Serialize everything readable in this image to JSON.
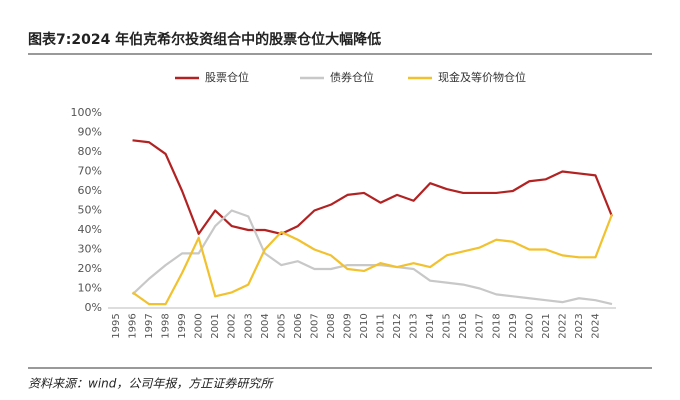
{
  "chart_data": {
    "type": "line",
    "title": "图表7:2024 年伯克希尔投资组合中的股票仓位大幅降低",
    "source": "资料来源：wind，公司年报，方正证券研究所",
    "categories": [
      "1995",
      "1996",
      "1997",
      "1998",
      "1999",
      "2000",
      "2001",
      "2002",
      "2003",
      "2004",
      "2005",
      "2006",
      "2007",
      "2008",
      "2009",
      "2010",
      "2011",
      "2012",
      "2013",
      "2014",
      "2015",
      "2016",
      "2017",
      "2018",
      "2019",
      "2020",
      "2021",
      "2022",
      "2023",
      "2024",
      null
    ],
    "series": [
      {
        "name": "股票仓位",
        "color": "#b22222",
        "values": [
          null,
          86,
          85,
          79,
          60,
          38,
          50,
          42,
          40,
          40,
          38,
          42,
          50,
          53,
          58,
          59,
          54,
          58,
          55,
          64,
          61,
          59,
          59,
          59,
          60,
          65,
          66,
          70,
          69,
          68,
          47
        ]
      },
      {
        "name": "债券仓位",
        "color": "#c8c8c8",
        "values": [
          null,
          7,
          15,
          22,
          28,
          28,
          42,
          50,
          47,
          28,
          22,
          24,
          20,
          20,
          22,
          22,
          22,
          21,
          20,
          14,
          13,
          12,
          10,
          7,
          6,
          5,
          4,
          3,
          5,
          4,
          2
        ]
      },
      {
        "name": "现金及等价物仓位",
        "color": "#f2c12e",
        "values": [
          null,
          8,
          2,
          2,
          18,
          36,
          6,
          8,
          12,
          30,
          39,
          35,
          30,
          27,
          20,
          19,
          23,
          21,
          23,
          21,
          27,
          29,
          31,
          35,
          34,
          30,
          30,
          27,
          26,
          26,
          48
        ]
      }
    ],
    "ylim": [
      0,
      100
    ],
    "yticks": [
      {
        "value": 0,
        "label": "0%"
      },
      {
        "value": 10,
        "label": "10%"
      },
      {
        "value": 20,
        "label": "20%"
      },
      {
        "value": 30,
        "label": "30%"
      },
      {
        "value": 40,
        "label": "40%"
      },
      {
        "value": 50,
        "label": "50%"
      },
      {
        "value": 60,
        "label": "60%"
      },
      {
        "value": 70,
        "label": "70%"
      },
      {
        "value": 80,
        "label": "80%"
      },
      {
        "value": 90,
        "label": "90%"
      },
      {
        "value": 100,
        "label": "100%"
      }
    ],
    "legend": "top"
  }
}
